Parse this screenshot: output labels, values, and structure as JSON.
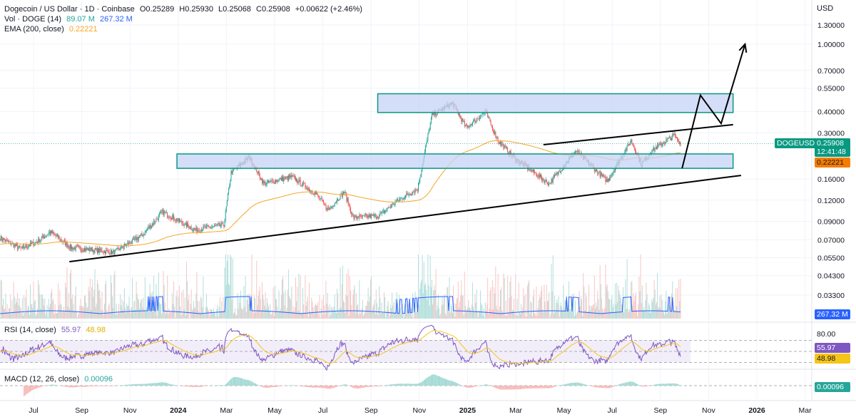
{
  "header": {
    "symbol_title": "Dogecoin / US Dollar · 1D · Coinbase",
    "open": "O0.25289",
    "high": "H0.25930",
    "low": "L0.25068",
    "close": "C0.25908",
    "change": "+0.00622 (+2.46%)",
    "volume_label": "Vol · DOGE (14)",
    "volume_value": "89.07 M",
    "volume_ma": "267.32 M",
    "ema_label": "EMA (200, close)",
    "ema_value": "0.22221",
    "rsi_label": "RSI (14, close)",
    "rsi_value": "55.97",
    "rsi_ma": "48.98",
    "macd_label": "MACD (12, 26, close)",
    "macd_value": "0.00096"
  },
  "price_axis": {
    "currency": "USD",
    "ticks": [
      "1.30000",
      "1.00000",
      "0.70000",
      "0.55000",
      "0.40000",
      "0.30000",
      "0.16000",
      "0.12000",
      "0.09000",
      "0.07000",
      "0.05500",
      "0.04300",
      "0.03300"
    ],
    "symbol_tag": "DOGEUSD",
    "last_price": "0.25908",
    "countdown": "12:41:48",
    "ema_tag": "0.22221",
    "volume_tag": "267.32 M",
    "rsi_tick": "80.00",
    "rsi_tag": "55.97",
    "rsi_ma_tag": "48.98",
    "macd_tag": "0.00096"
  },
  "time_axis": {
    "ticks": [
      "Jul",
      "Sep",
      "Nov",
      "2024",
      "Mar",
      "May",
      "Jul",
      "Sep",
      "Nov",
      "2025",
      "Mar",
      "May",
      "Jul",
      "Sep",
      "Nov",
      "2026",
      "Mar"
    ]
  },
  "colors": {
    "up": "#26a69a",
    "down": "#ef5350",
    "ema": "#f5a623",
    "volume_ma": "#2962ff",
    "rsi": "#7e57c2",
    "rsi_ma": "#f5c518",
    "zone": "#c5d3f5",
    "zone_border": "#089981",
    "macd_tag": "#26a69a"
  },
  "chart_data": {
    "type": "candlestick",
    "scale": "log",
    "price_path": [
      [
        "2023-05-20",
        0.072
      ],
      [
        "2023-06-15",
        0.062
      ],
      [
        "2023-07-05",
        0.068
      ],
      [
        "2023-07-22",
        0.078
      ],
      [
        "2023-08-17",
        0.063
      ],
      [
        "2023-10-10",
        0.059
      ],
      [
        "2023-11-15",
        0.075
      ],
      [
        "2023-12-10",
        0.102
      ],
      [
        "2024-01-20",
        0.08
      ],
      [
        "2024-02-25",
        0.086
      ],
      [
        "2024-03-05",
        0.175
      ],
      [
        "2024-03-28",
        0.215
      ],
      [
        "2024-04-15",
        0.15
      ],
      [
        "2024-05-20",
        0.165
      ],
      [
        "2024-06-20",
        0.13
      ],
      [
        "2024-07-05",
        0.105
      ],
      [
        "2024-07-25",
        0.135
      ],
      [
        "2024-08-05",
        0.095
      ],
      [
        "2024-09-06",
        0.097
      ],
      [
        "2024-10-01",
        0.12
      ],
      [
        "2024-10-25",
        0.14
      ],
      [
        "2024-11-12",
        0.38
      ],
      [
        "2024-12-08",
        0.45
      ],
      [
        "2024-12-25",
        0.32
      ],
      [
        "2025-01-18",
        0.4
      ],
      [
        "2025-02-03",
        0.27
      ],
      [
        "2025-02-25",
        0.21
      ],
      [
        "2025-03-20",
        0.175
      ],
      [
        "2025-04-08",
        0.15
      ],
      [
        "2025-05-12",
        0.235
      ],
      [
        "2025-06-20",
        0.155
      ],
      [
        "2025-07-20",
        0.27
      ],
      [
        "2025-08-02",
        0.195
      ],
      [
        "2025-08-15",
        0.235
      ],
      [
        "2025-09-12",
        0.29
      ],
      [
        "2025-09-20",
        0.259
      ]
    ],
    "annotations": {
      "zones": [
        {
          "from": "2024-09-05",
          "to": "2025-11-25",
          "low": 0.395,
          "high": 0.51
        },
        {
          "from": "2023-12-28",
          "to": "2025-11-25",
          "low": 0.185,
          "high": 0.225
        }
      ],
      "trendlines": [
        {
          "from": [
            "2023-08-15",
            0.052
          ],
          "to": [
            "2025-12-05",
            0.168
          ]
        },
        {
          "from": [
            "2025-04-01",
            0.255
          ],
          "to": [
            "2025-11-25",
            0.335
          ]
        }
      ],
      "projection_arrow": [
        [
          "2025-09-22",
          0.185
        ],
        [
          "2025-10-15",
          0.5
        ],
        [
          "2025-11-10",
          0.34
        ],
        [
          "2025-12-10",
          1.0
        ]
      ]
    }
  }
}
